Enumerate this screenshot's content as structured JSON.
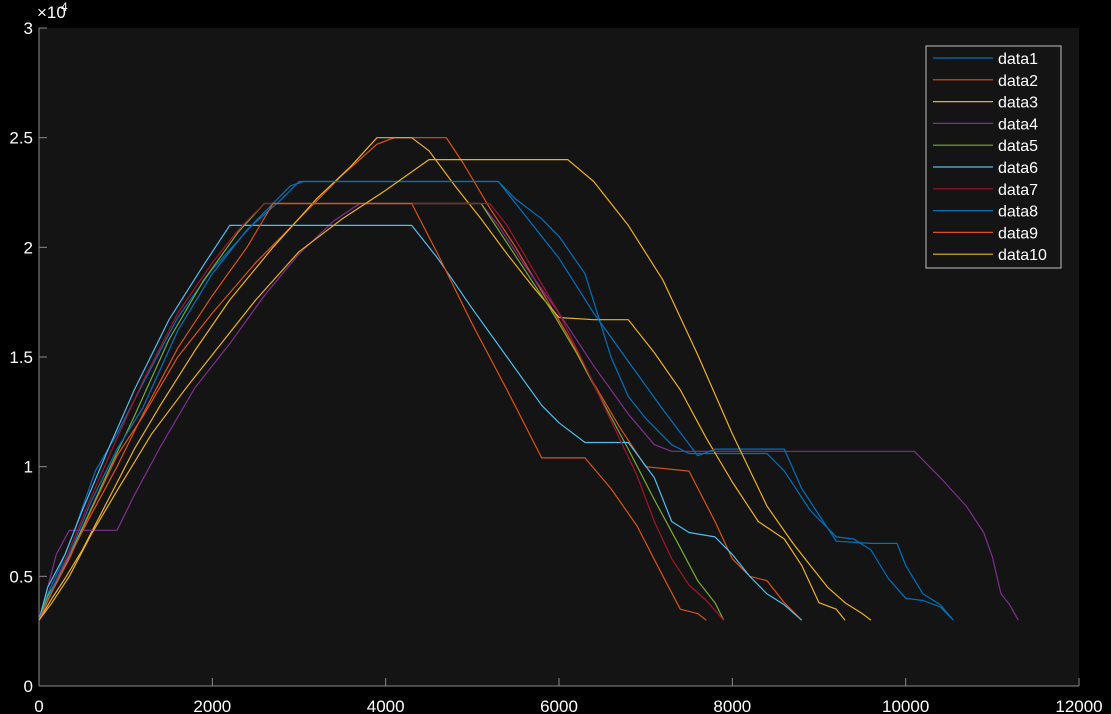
{
  "colors": {
    "figure_bg": "#000000",
    "axes_bg": "#141414",
    "axis_color": "#8a8a8a",
    "text": "#ffffff",
    "legend_bg": "#141414",
    "legend_border": "#bfbfbf"
  },
  "chart_data": {
    "type": "line",
    "title": "",
    "xlabel": "",
    "ylabel": "",
    "xlim": [
      0,
      12000
    ],
    "ylim": [
      0,
      30000
    ],
    "y_exponent_label": "×10",
    "y_exponent_power": "4",
    "x_ticks": [
      0,
      2000,
      4000,
      6000,
      8000,
      10000,
      12000
    ],
    "x_tick_labels": [
      "0",
      "2000",
      "4000",
      "6000",
      "8000",
      "10000",
      "12000"
    ],
    "y_ticks": [
      0,
      5000,
      10000,
      15000,
      20000,
      25000,
      30000
    ],
    "y_tick_labels": [
      "0",
      "0.5",
      "1",
      "1.5",
      "2",
      "2.5",
      "3"
    ],
    "grid": false,
    "legend_position": "top-right",
    "series": [
      {
        "name": "data1",
        "color": "#0072BD",
        "points": [
          [
            0,
            3000
          ],
          [
            100,
            4200
          ],
          [
            250,
            5500
          ],
          [
            400,
            7000
          ],
          [
            650,
            9800
          ],
          [
            900,
            11500
          ],
          [
            1200,
            13800
          ],
          [
            1600,
            16800
          ],
          [
            2000,
            19000
          ],
          [
            2500,
            21200
          ],
          [
            2900,
            22800
          ],
          [
            3050,
            23000
          ],
          [
            5300,
            23000
          ],
          [
            5500,
            22200
          ],
          [
            5800,
            21300
          ],
          [
            6000,
            20500
          ],
          [
            6300,
            18800
          ],
          [
            6600,
            15000
          ],
          [
            6800,
            13200
          ],
          [
            7000,
            12200
          ],
          [
            7300,
            11000
          ],
          [
            7500,
            10600
          ],
          [
            8400,
            10600
          ],
          [
            8600,
            9800
          ],
          [
            8900,
            8000
          ],
          [
            9200,
            6800
          ],
          [
            9400,
            6700
          ],
          [
            9600,
            6200
          ],
          [
            9800,
            4900
          ],
          [
            10000,
            4000
          ],
          [
            10200,
            3900
          ],
          [
            10400,
            3600
          ],
          [
            10550,
            3000
          ]
        ]
      },
      {
        "name": "data2",
        "color": "#D95319",
        "points": [
          [
            0,
            3000
          ],
          [
            150,
            4300
          ],
          [
            350,
            5800
          ],
          [
            600,
            8000
          ],
          [
            900,
            10500
          ],
          [
            1200,
            12300
          ],
          [
            1600,
            15000
          ],
          [
            2000,
            17000
          ],
          [
            2500,
            19300
          ],
          [
            3000,
            21300
          ],
          [
            3500,
            23300
          ],
          [
            3900,
            24700
          ],
          [
            4100,
            25000
          ],
          [
            4700,
            25000
          ],
          [
            4900,
            23800
          ],
          [
            5200,
            21800
          ],
          [
            5500,
            20000
          ],
          [
            5800,
            18000
          ],
          [
            6100,
            16000
          ],
          [
            6400,
            13800
          ],
          [
            6700,
            11800
          ],
          [
            7000,
            10000
          ],
          [
            7500,
            9800
          ],
          [
            7800,
            7500
          ],
          [
            8000,
            5800
          ],
          [
            8200,
            5000
          ],
          [
            8400,
            4800
          ],
          [
            8600,
            3800
          ],
          [
            8800,
            3000
          ]
        ]
      },
      {
        "name": "data3",
        "color": "#EDB120",
        "points": [
          [
            0,
            3000
          ],
          [
            150,
            4000
          ],
          [
            300,
            4900
          ],
          [
            500,
            6200
          ],
          [
            800,
            8500
          ],
          [
            1100,
            10800
          ],
          [
            1400,
            12800
          ],
          [
            1800,
            15300
          ],
          [
            2200,
            17600
          ],
          [
            2700,
            20000
          ],
          [
            3200,
            22200
          ],
          [
            3600,
            23700
          ],
          [
            3900,
            25000
          ],
          [
            4300,
            25000
          ],
          [
            4500,
            24400
          ],
          [
            4800,
            22800
          ],
          [
            5100,
            21300
          ],
          [
            5400,
            19700
          ],
          [
            5700,
            18200
          ],
          [
            6000,
            16800
          ],
          [
            6400,
            16700
          ],
          [
            6800,
            16700
          ],
          [
            7100,
            15200
          ],
          [
            7400,
            13500
          ],
          [
            7700,
            11300
          ],
          [
            8000,
            9300
          ],
          [
            8300,
            7500
          ],
          [
            8600,
            6700
          ],
          [
            8800,
            5500
          ],
          [
            9000,
            3800
          ],
          [
            9200,
            3500
          ],
          [
            9300,
            3000
          ]
        ]
      },
      {
        "name": "data4",
        "color": "#7E2F8E",
        "points": [
          [
            0,
            3000
          ],
          [
            100,
            4500
          ],
          [
            200,
            6000
          ],
          [
            350,
            7100
          ],
          [
            500,
            7100
          ],
          [
            900,
            7100
          ],
          [
            1100,
            8700
          ],
          [
            1400,
            10900
          ],
          [
            1800,
            13600
          ],
          [
            2200,
            15600
          ],
          [
            2600,
            17800
          ],
          [
            3000,
            19700
          ],
          [
            3400,
            21200
          ],
          [
            3700,
            22000
          ],
          [
            5100,
            22000
          ],
          [
            5300,
            21000
          ],
          [
            5600,
            19200
          ],
          [
            6000,
            17000
          ],
          [
            6400,
            14600
          ],
          [
            6800,
            12400
          ],
          [
            7100,
            11000
          ],
          [
            7300,
            10700
          ],
          [
            10100,
            10700
          ],
          [
            10400,
            9500
          ],
          [
            10700,
            8200
          ],
          [
            10900,
            7000
          ],
          [
            11000,
            5900
          ],
          [
            11100,
            4200
          ],
          [
            11200,
            3700
          ],
          [
            11300,
            3000
          ]
        ]
      },
      {
        "name": "data5",
        "color": "#77AC30",
        "points": [
          [
            0,
            3000
          ],
          [
            100,
            4100
          ],
          [
            300,
            5500
          ],
          [
            500,
            7200
          ],
          [
            800,
            9800
          ],
          [
            1100,
            12300
          ],
          [
            1500,
            15800
          ],
          [
            1900,
            18500
          ],
          [
            2300,
            20700
          ],
          [
            2600,
            22000
          ],
          [
            5100,
            22000
          ],
          [
            5300,
            20800
          ],
          [
            5600,
            19000
          ],
          [
            5900,
            17200
          ],
          [
            6200,
            15200
          ],
          [
            6500,
            13000
          ],
          [
            6800,
            10800
          ],
          [
            7100,
            8500
          ],
          [
            7400,
            6300
          ],
          [
            7600,
            4800
          ],
          [
            7800,
            3800
          ],
          [
            7900,
            3000
          ]
        ]
      },
      {
        "name": "data6",
        "color": "#4DBEEE",
        "points": [
          [
            0,
            3000
          ],
          [
            100,
            4500
          ],
          [
            300,
            6000
          ],
          [
            500,
            8000
          ],
          [
            800,
            10800
          ],
          [
            1100,
            13500
          ],
          [
            1500,
            16700
          ],
          [
            1900,
            19200
          ],
          [
            2200,
            21000
          ],
          [
            4300,
            21000
          ],
          [
            4600,
            19500
          ],
          [
            5000,
            17200
          ],
          [
            5400,
            15000
          ],
          [
            5800,
            12800
          ],
          [
            6000,
            12000
          ],
          [
            6300,
            11100
          ],
          [
            6800,
            11100
          ],
          [
            7100,
            9500
          ],
          [
            7300,
            7500
          ],
          [
            7500,
            7000
          ],
          [
            7800,
            6800
          ],
          [
            8000,
            6000
          ],
          [
            8200,
            5000
          ],
          [
            8400,
            4200
          ],
          [
            8600,
            3700
          ],
          [
            8800,
            3000
          ]
        ]
      },
      {
        "name": "data7",
        "color": "#A2142F",
        "points": [
          [
            0,
            3000
          ],
          [
            150,
            4400
          ],
          [
            350,
            6200
          ],
          [
            600,
            8600
          ],
          [
            900,
            11300
          ],
          [
            1200,
            13900
          ],
          [
            1600,
            17000
          ],
          [
            2000,
            19300
          ],
          [
            2300,
            20800
          ],
          [
            2600,
            22000
          ],
          [
            5200,
            22000
          ],
          [
            5400,
            21000
          ],
          [
            5700,
            19000
          ],
          [
            6000,
            17000
          ],
          [
            6300,
            14600
          ],
          [
            6600,
            12100
          ],
          [
            6900,
            9600
          ],
          [
            7100,
            7500
          ],
          [
            7300,
            5800
          ],
          [
            7500,
            4600
          ],
          [
            7700,
            3900
          ],
          [
            7900,
            3000
          ]
        ]
      },
      {
        "name": "data8",
        "color": "#0072BD",
        "points": [
          [
            0,
            3000
          ],
          [
            150,
            4400
          ],
          [
            350,
            6000
          ],
          [
            600,
            8400
          ],
          [
            900,
            10800
          ],
          [
            1200,
            12700
          ],
          [
            1600,
            16200
          ],
          [
            2000,
            18800
          ],
          [
            2400,
            20800
          ],
          [
            2800,
            22200
          ],
          [
            3000,
            23000
          ],
          [
            5300,
            23000
          ],
          [
            5600,
            21500
          ],
          [
            6000,
            19500
          ],
          [
            6400,
            17000
          ],
          [
            6800,
            14800
          ],
          [
            7200,
            12600
          ],
          [
            7600,
            10500
          ],
          [
            7800,
            10800
          ],
          [
            8600,
            10800
          ],
          [
            8800,
            9000
          ],
          [
            9000,
            7800
          ],
          [
            9200,
            6600
          ],
          [
            9600,
            6500
          ],
          [
            9900,
            6500
          ],
          [
            10000,
            5500
          ],
          [
            10200,
            4200
          ],
          [
            10400,
            3700
          ],
          [
            10550,
            3000
          ]
        ]
      },
      {
        "name": "data9",
        "color": "#D95319",
        "points": [
          [
            0,
            3000
          ],
          [
            150,
            4300
          ],
          [
            350,
            5900
          ],
          [
            600,
            7800
          ],
          [
            900,
            10000
          ],
          [
            1200,
            12400
          ],
          [
            1600,
            15400
          ],
          [
            2000,
            17800
          ],
          [
            2400,
            20000
          ],
          [
            2700,
            22000
          ],
          [
            4300,
            22000
          ],
          [
            4600,
            19700
          ],
          [
            5000,
            16500
          ],
          [
            5400,
            13500
          ],
          [
            5800,
            10400
          ],
          [
            6300,
            10400
          ],
          [
            6600,
            9000
          ],
          [
            6900,
            7300
          ],
          [
            7200,
            5000
          ],
          [
            7400,
            3500
          ],
          [
            7600,
            3300
          ],
          [
            7700,
            3000
          ]
        ]
      },
      {
        "name": "data10",
        "color": "#EDB120",
        "points": [
          [
            0,
            3000
          ],
          [
            150,
            3800
          ],
          [
            350,
            5000
          ],
          [
            600,
            6900
          ],
          [
            900,
            8900
          ],
          [
            1300,
            11500
          ],
          [
            1700,
            13600
          ],
          [
            2100,
            15600
          ],
          [
            2500,
            17600
          ],
          [
            3000,
            19800
          ],
          [
            3500,
            21300
          ],
          [
            4000,
            22600
          ],
          [
            4500,
            24000
          ],
          [
            6100,
            24000
          ],
          [
            6400,
            23000
          ],
          [
            6800,
            21000
          ],
          [
            7200,
            18500
          ],
          [
            7600,
            15100
          ],
          [
            8000,
            11500
          ],
          [
            8400,
            8200
          ],
          [
            8700,
            6500
          ],
          [
            8900,
            5500
          ],
          [
            9100,
            4500
          ],
          [
            9300,
            3800
          ],
          [
            9500,
            3300
          ],
          [
            9600,
            3000
          ]
        ]
      }
    ]
  }
}
